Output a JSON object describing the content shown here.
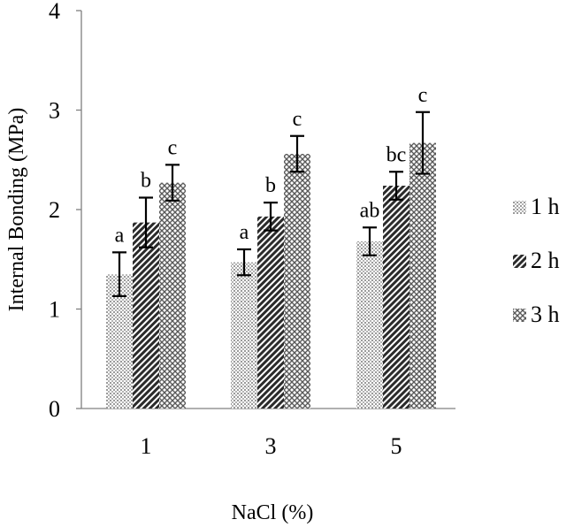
{
  "chart_data": {
    "type": "bar",
    "title": "",
    "xlabel": "NaCl (%)",
    "ylabel": "Internal Bonding (MPa)",
    "categories": [
      "1",
      "3",
      "5"
    ],
    "ylim": [
      0,
      4
    ],
    "yticks": [
      "0",
      "1",
      "2",
      "3",
      "4"
    ],
    "grid": false,
    "legend_position": "right",
    "series": [
      {
        "name": "1 h",
        "pattern": "fine-dots",
        "values": [
          1.35,
          1.47,
          1.68
        ],
        "errors": [
          0.22,
          0.13,
          0.14
        ],
        "labels": [
          "a",
          "a",
          "ab"
        ]
      },
      {
        "name": "2 h",
        "pattern": "diagonal-hatch",
        "values": [
          1.87,
          1.93,
          2.24
        ],
        "errors": [
          0.25,
          0.14,
          0.14
        ],
        "labels": [
          "b",
          "b",
          "bc"
        ]
      },
      {
        "name": "3 h",
        "pattern": "crosshatch",
        "values": [
          2.27,
          2.56,
          2.67
        ],
        "errors": [
          0.18,
          0.18,
          0.31
        ],
        "labels": [
          "c",
          "c",
          "c"
        ]
      }
    ]
  }
}
